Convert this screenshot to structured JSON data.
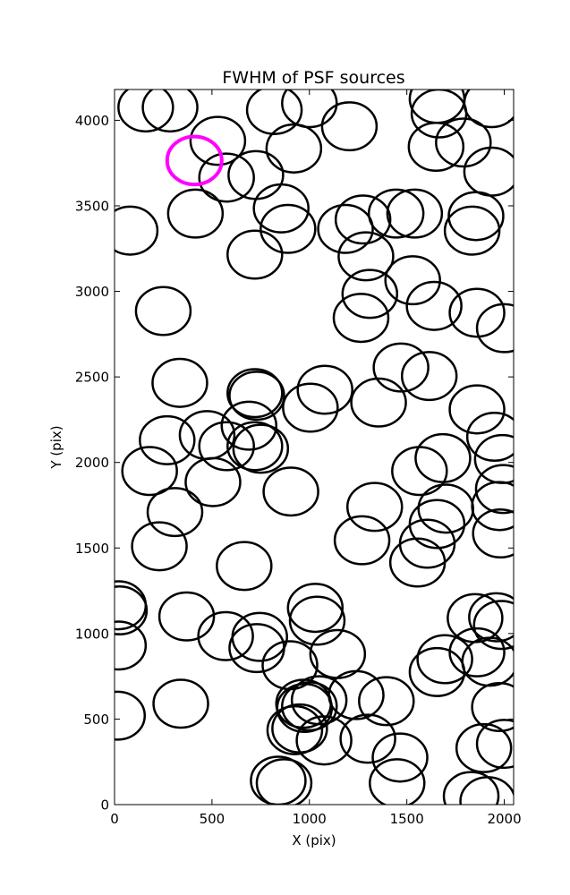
{
  "chart_data": {
    "type": "scatter",
    "title": "FWHM of PSF sources",
    "xlabel": "X (pix)",
    "ylabel": "Y (pix)",
    "xlim": [
      0,
      2048
    ],
    "ylim": [
      0,
      4180
    ],
    "xticks": [
      0,
      500,
      1000,
      1500,
      2000
    ],
    "yticks": [
      0,
      500,
      1000,
      1500,
      2000,
      2500,
      3000,
      3500,
      4000
    ],
    "grid": false,
    "marker_radius": 140,
    "highlight_color": "#ff00ff",
    "base_color": "#000000",
    "highlight": {
      "x": 410,
      "y": 3765
    },
    "points": [
      [
        160,
        4075
      ],
      [
        285,
        4075
      ],
      [
        530,
        3880
      ],
      [
        575,
        3665
      ],
      [
        725,
        3680
      ],
      [
        415,
        3455
      ],
      [
        80,
        3355
      ],
      [
        855,
        3485
      ],
      [
        890,
        3365
      ],
      [
        720,
        3215
      ],
      [
        820,
        4060
      ],
      [
        1000,
        4100
      ],
      [
        920,
        3835
      ],
      [
        1205,
        3965
      ],
      [
        1655,
        4125
      ],
      [
        1665,
        4040
      ],
      [
        1650,
        3845
      ],
      [
        1790,
        3870
      ],
      [
        1935,
        4100
      ],
      [
        1935,
        3700
      ],
      [
        1275,
        3420
      ],
      [
        1445,
        3455
      ],
      [
        1540,
        3455
      ],
      [
        1185,
        3365
      ],
      [
        1290,
        3205
      ],
      [
        1530,
        3065
      ],
      [
        1310,
        2985
      ],
      [
        1265,
        2845
      ],
      [
        1640,
        2915
      ],
      [
        1855,
        3440
      ],
      [
        1835,
        3355
      ],
      [
        1860,
        2875
      ],
      [
        2000,
        2785
      ],
      [
        250,
        2885
      ],
      [
        335,
        2465
      ],
      [
        720,
        2405
      ],
      [
        730,
        2390
      ],
      [
        1080,
        2425
      ],
      [
        1005,
        2320
      ],
      [
        1355,
        2350
      ],
      [
        1470,
        2555
      ],
      [
        1615,
        2505
      ],
      [
        1860,
        2310
      ],
      [
        1950,
        2150
      ],
      [
        1990,
        2020
      ],
      [
        1995,
        1845
      ],
      [
        1975,
        1745
      ],
      [
        1980,
        1585
      ],
      [
        270,
        2130
      ],
      [
        475,
        2160
      ],
      [
        575,
        2095
      ],
      [
        690,
        2215
      ],
      [
        720,
        2095
      ],
      [
        750,
        2080
      ],
      [
        180,
        1950
      ],
      [
        505,
        1885
      ],
      [
        310,
        1710
      ],
      [
        905,
        1830
      ],
      [
        1685,
        2025
      ],
      [
        1565,
        1950
      ],
      [
        1335,
        1740
      ],
      [
        1700,
        1730
      ],
      [
        1655,
        1640
      ],
      [
        1605,
        1525
      ],
      [
        1555,
        1415
      ],
      [
        1270,
        1545
      ],
      [
        230,
        1510
      ],
      [
        665,
        1395
      ],
      [
        20,
        1165
      ],
      [
        25,
        1135
      ],
      [
        20,
        930
      ],
      [
        370,
        1100
      ],
      [
        570,
        985
      ],
      [
        745,
        980
      ],
      [
        730,
        915
      ],
      [
        1030,
        1150
      ],
      [
        1040,
        1075
      ],
      [
        1145,
        880
      ],
      [
        900,
        815
      ],
      [
        1240,
        640
      ],
      [
        1395,
        605
      ],
      [
        1050,
        610
      ],
      [
        970,
        590
      ],
      [
        975,
        565
      ],
      [
        1000,
        575
      ],
      [
        925,
        435
      ],
      [
        950,
        445
      ],
      [
        1075,
        375
      ],
      [
        1300,
        385
      ],
      [
        1465,
        275
      ],
      [
        1450,
        125
      ],
      [
        340,
        590
      ],
      [
        15,
        520
      ],
      [
        840,
        140
      ],
      [
        870,
        125
      ],
      [
        1695,
        850
      ],
      [
        1655,
        775
      ],
      [
        1850,
        1090
      ],
      [
        1960,
        1095
      ],
      [
        1985,
        1050
      ],
      [
        1860,
        890
      ],
      [
        1925,
        835
      ],
      [
        1975,
        570
      ],
      [
        1895,
        330
      ],
      [
        2000,
        355
      ],
      [
        1830,
        50
      ],
      [
        1915,
        20
      ]
    ]
  }
}
